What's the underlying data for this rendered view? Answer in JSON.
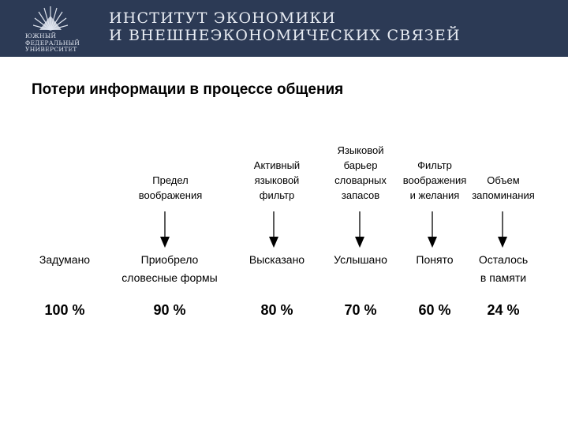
{
  "header": {
    "logo_text": "ЮЖНЫЙ\nФЕДЕРАЛЬНЫЙ\nУНИВЕРСИТЕТ",
    "institute_title": "ИНСТИТУТ ЭКОНОМИКИ\nИ ВНЕШНЕЭКОНОМИЧЕСКИХ СВЯЗЕЙ",
    "background_color": "#2c3a55"
  },
  "slide": {
    "title": "Потери информации в процессе общения"
  },
  "filters": [
    "Предел\nвоображения",
    "Активный\nязыковой\nфильтр",
    "Языковой\nбарьер\nсловарных\nзапасов",
    "Фильтр\nвоображения\nи желания",
    "Объем\nзапоминания"
  ],
  "stages": [
    "Задумано",
    "Приобрело\nсловесные формы",
    "Высказано",
    "Услышано",
    "Понято",
    "Осталось\nв памяти"
  ],
  "percentages": [
    "100 %",
    "90 %",
    "80 %",
    "70 %",
    "60 %",
    "24 %"
  ],
  "retained_percent_values": [
    100,
    90,
    80,
    70,
    60,
    24
  ]
}
